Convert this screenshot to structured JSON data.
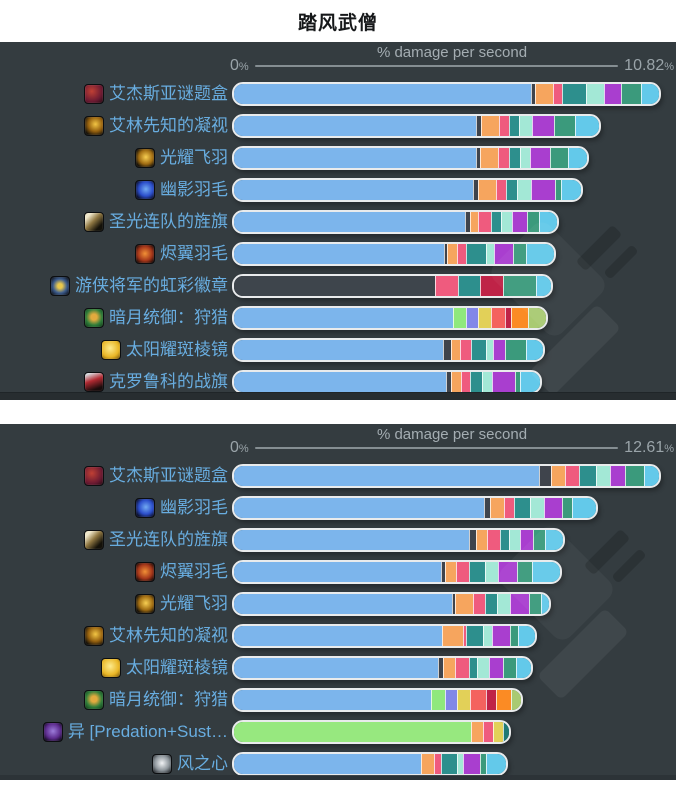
{
  "page_title": "踏风武僧",
  "palette": {
    "base": "#7cb5ec",
    "dark": "#3f444c",
    "darkbase": "#3e454c",
    "orange": "#f6a55e",
    "pink": "#ef5b7e",
    "teal": "#2d8f8d",
    "mint": "#a3e8d6",
    "purple": "#a93ecf",
    "green": "#3b9a7c",
    "sky": "#63c9ea",
    "lime": "#8fe87d",
    "periwinkle": "#8287e8",
    "yellow": "#e2d058",
    "salmon": "#f4625e",
    "crimson": "#bf2347",
    "brightorange": "#fb8b24",
    "olive": "#a9ca72",
    "limebase": "#97e87f",
    "tealdark": "#207a75"
  },
  "label_color": "#68ade0",
  "panel_background": "#343c40",
  "chart_data": [
    {
      "type": "bar",
      "orientation": "horizontal-stacked",
      "axis_title": "% damage per second",
      "min_label": "0",
      "max_label": "10.82",
      "unit": "%",
      "ylim": [
        0,
        10.82
      ],
      "max_value": 10.82,
      "rows": [
        {
          "label": "艾杰斯亚谜题盒",
          "icon": "puzzle-box",
          "total": 10.82,
          "segments": [
            [
              "base",
              7.56
            ],
            [
              "dark",
              0.1
            ],
            [
              "orange",
              0.46
            ],
            [
              "pink",
              0.23
            ],
            [
              "teal",
              0.61
            ],
            [
              "mint",
              0.46
            ],
            [
              "purple",
              0.43
            ],
            [
              "green",
              0.51
            ],
            [
              "sky",
              0.46
            ]
          ]
        },
        {
          "label": "艾林先知的凝视",
          "icon": "oracle-gaze",
          "total": 9.29,
          "segments": [
            [
              "base",
              6.16
            ],
            [
              "dark",
              0.13
            ],
            [
              "orange",
              0.46
            ],
            [
              "pink",
              0.25
            ],
            [
              "teal",
              0.25
            ],
            [
              "mint",
              0.33
            ],
            [
              "purple",
              0.56
            ],
            [
              "green",
              0.53
            ],
            [
              "sky",
              0.61
            ]
          ]
        },
        {
          "label": "光耀飞羽",
          "icon": "radiant-feather",
          "total": 8.99,
          "segments": [
            [
              "base",
              6.16
            ],
            [
              "dark",
              0.1
            ],
            [
              "orange",
              0.46
            ],
            [
              "pink",
              0.28
            ],
            [
              "teal",
              0.28
            ],
            [
              "mint",
              0.25
            ],
            [
              "purple",
              0.51
            ],
            [
              "green",
              0.46
            ],
            [
              "sky",
              0.48
            ]
          ]
        },
        {
          "label": "幽影羽毛",
          "icon": "shadow-feather",
          "total": 8.83,
          "segments": [
            [
              "base",
              6.08
            ],
            [
              "dark",
              0.13
            ],
            [
              "orange",
              0.46
            ],
            [
              "pink",
              0.25
            ],
            [
              "teal",
              0.28
            ],
            [
              "mint",
              0.36
            ],
            [
              "purple",
              0.61
            ],
            [
              "green",
              0.15
            ],
            [
              "sky",
              0.51
            ]
          ]
        },
        {
          "label": "圣光连队的旌旗",
          "icon": "holy-banner",
          "total": 8.22,
          "segments": [
            [
              "base",
              5.88
            ],
            [
              "dark",
              0.13
            ],
            [
              "orange",
              0.2
            ],
            [
              "pink",
              0.33
            ],
            [
              "teal",
              0.25
            ],
            [
              "mint",
              0.28
            ],
            [
              "purple",
              0.38
            ],
            [
              "green",
              0.31
            ],
            [
              "sky",
              0.46
            ]
          ]
        },
        {
          "label": "烬翼羽毛",
          "icon": "ember-feather",
          "total": 8.15,
          "segments": [
            [
              "base",
              5.35
            ],
            [
              "dark",
              0.08
            ],
            [
              "orange",
              0.25
            ],
            [
              "pink",
              0.23
            ],
            [
              "teal",
              0.51
            ],
            [
              "mint",
              0.2
            ],
            [
              "purple",
              0.48
            ],
            [
              "green",
              0.33
            ],
            [
              "sky",
              0.71
            ]
          ]
        },
        {
          "label": "游侠将军的虹彩徽章",
          "icon": "prism-emblem",
          "total": 8.07,
          "segments": [
            [
              "darkbase",
              5.12
            ],
            [
              "pink",
              0.59
            ],
            [
              "teal",
              0.56
            ],
            [
              "crimson",
              0.59
            ],
            [
              "green",
              0.84
            ],
            [
              "sky",
              0.38
            ]
          ]
        },
        {
          "label": "暗月统御：狩猎",
          "icon": "darkmoon-card",
          "total": 7.95,
          "segments": [
            [
              "base",
              5.58
            ],
            [
              "lime",
              0.33
            ],
            [
              "periwinkle",
              0.31
            ],
            [
              "yellow",
              0.31
            ],
            [
              "salmon",
              0.38
            ],
            [
              "crimson",
              0.15
            ],
            [
              "brightorange",
              0.43
            ],
            [
              "olive",
              0.46
            ]
          ]
        },
        {
          "label": "太阳耀斑棱镜",
          "icon": "sun-prism",
          "total": 7.86,
          "segments": [
            [
              "base",
              5.32
            ],
            [
              "dark",
              0.2
            ],
            [
              "orange",
              0.23
            ],
            [
              "pink",
              0.28
            ],
            [
              "teal",
              0.38
            ],
            [
              "mint",
              0.18
            ],
            [
              "purple",
              0.31
            ],
            [
              "green",
              0.53
            ],
            [
              "sky",
              0.43
            ]
          ]
        },
        {
          "label": "克罗鲁科的战旗",
          "icon": "war-banner",
          "total": 7.8,
          "segments": [
            [
              "base",
              5.4
            ],
            [
              "dark",
              0.13
            ],
            [
              "orange",
              0.25
            ],
            [
              "pink",
              0.23
            ],
            [
              "teal",
              0.31
            ],
            [
              "mint",
              0.25
            ],
            [
              "purple",
              0.59
            ],
            [
              "green",
              0.13
            ],
            [
              "sky",
              0.51
            ]
          ]
        }
      ]
    },
    {
      "type": "bar",
      "orientation": "horizontal-stacked",
      "axis_title": "% damage per second",
      "min_label": "0",
      "max_label": "12.61",
      "unit": "%",
      "ylim": [
        0,
        12.61
      ],
      "max_value": 12.61,
      "rows": [
        {
          "label": "艾杰斯亚谜题盒",
          "icon": "puzzle-box",
          "total": 12.61,
          "segments": [
            [
              "base",
              9.06
            ],
            [
              "dark",
              0.36
            ],
            [
              "orange",
              0.41
            ],
            [
              "pink",
              0.41
            ],
            [
              "teal",
              0.5
            ],
            [
              "mint",
              0.41
            ],
            [
              "purple",
              0.44
            ],
            [
              "green",
              0.59
            ],
            [
              "sky",
              0.43
            ]
          ]
        },
        {
          "label": "幽影羽毛",
          "icon": "shadow-feather",
          "total": 10.74,
          "segments": [
            [
              "base",
              7.43
            ],
            [
              "dark",
              0.18
            ],
            [
              "orange",
              0.41
            ],
            [
              "pink",
              0.3
            ],
            [
              "teal",
              0.47
            ],
            [
              "mint",
              0.41
            ],
            [
              "purple",
              0.53
            ],
            [
              "green",
              0.3
            ],
            [
              "sky",
              0.71
            ]
          ]
        },
        {
          "label": "圣光连队的旌旗",
          "icon": "holy-banner",
          "total": 9.77,
          "segments": [
            [
              "base",
              6.96
            ],
            [
              "dark",
              0.21
            ],
            [
              "orange",
              0.33
            ],
            [
              "pink",
              0.38
            ],
            [
              "teal",
              0.27
            ],
            [
              "mint",
              0.33
            ],
            [
              "purple",
              0.38
            ],
            [
              "green",
              0.38
            ],
            [
              "sky",
              0.53
            ]
          ]
        },
        {
          "label": "烬翼羽毛",
          "icon": "ember-feather",
          "total": 9.67,
          "segments": [
            [
              "base",
              6.13
            ],
            [
              "dark",
              0.12
            ],
            [
              "orange",
              0.33
            ],
            [
              "pink",
              0.41
            ],
            [
              "teal",
              0.47
            ],
            [
              "mint",
              0.38
            ],
            [
              "purple",
              0.56
            ],
            [
              "green",
              0.44
            ],
            [
              "sky",
              0.83
            ]
          ]
        },
        {
          "label": "光耀飞羽",
          "icon": "radiant-feather",
          "total": 9.36,
          "segments": [
            [
              "base",
              6.48
            ],
            [
              "dark",
              0.09
            ],
            [
              "orange",
              0.53
            ],
            [
              "pink",
              0.36
            ],
            [
              "teal",
              0.36
            ],
            [
              "mint",
              0.38
            ],
            [
              "purple",
              0.56
            ],
            [
              "green",
              0.36
            ],
            [
              "sky",
              0.24
            ]
          ]
        },
        {
          "label": "艾林先知的凝视",
          "icon": "oracle-gaze",
          "total": 8.94,
          "segments": [
            [
              "base",
              6.16
            ],
            [
              "orange",
              0.65
            ],
            [
              "pink",
              0.09
            ],
            [
              "teal",
              0.5
            ],
            [
              "mint",
              0.27
            ],
            [
              "purple",
              0.53
            ],
            [
              "green",
              0.24
            ],
            [
              "sky",
              0.5
            ]
          ]
        },
        {
          "label": "太阳耀斑棱镜",
          "icon": "sun-prism",
          "total": 8.82,
          "segments": [
            [
              "base",
              6.04
            ],
            [
              "dark",
              0.15
            ],
            [
              "orange",
              0.36
            ],
            [
              "pink",
              0.41
            ],
            [
              "teal",
              0.24
            ],
            [
              "mint",
              0.36
            ],
            [
              "purple",
              0.41
            ],
            [
              "green",
              0.41
            ],
            [
              "sky",
              0.44
            ]
          ]
        },
        {
          "label": "暗月统御：狩猎",
          "icon": "darkmoon-card",
          "total": 8.52,
          "segments": [
            [
              "base",
              5.83
            ],
            [
              "lime",
              0.44
            ],
            [
              "periwinkle",
              0.36
            ],
            [
              "yellow",
              0.38
            ],
            [
              "salmon",
              0.47
            ],
            [
              "crimson",
              0.3
            ],
            [
              "brightorange",
              0.44
            ],
            [
              "olive",
              0.3
            ]
          ]
        },
        {
          "label": "异 [Predation+Sust…",
          "icon": "predation-skull",
          "total": 8.15,
          "segments": [
            [
              "limebase",
              7.04
            ],
            [
              "orange",
              0.36
            ],
            [
              "pink",
              0.3
            ],
            [
              "yellow",
              0.27
            ],
            [
              "tealdark",
              0.18
            ]
          ]
        },
        {
          "label": "风之心",
          "icon": "wind-heart",
          "total": 8.07,
          "segments": [
            [
              "base",
              5.56
            ],
            [
              "orange",
              0.38
            ],
            [
              "pink",
              0.21
            ],
            [
              "teal",
              0.47
            ],
            [
              "mint",
              0.18
            ],
            [
              "purple",
              0.5
            ],
            [
              "green",
              0.18
            ],
            [
              "sky",
              0.59
            ]
          ]
        }
      ]
    }
  ]
}
